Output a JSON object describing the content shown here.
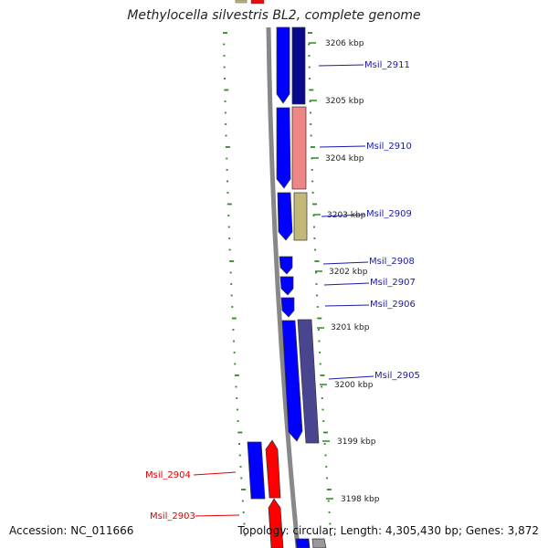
{
  "title": "Methylocella silvestris BL2, complete genome",
  "accession_text": "Accession: NC_011666",
  "summary_text": "Topology: circular; Length: 4,305,430 bp; Genes: 3,872",
  "colors": {
    "backbone": "#888888",
    "tick_green": "#2e8b22",
    "forward_gene": "#0000ff",
    "label_blue": "#1a1aaa",
    "label_red": "#dd0000",
    "navy": "#0a0a8c",
    "salmon": "#ef8686",
    "khaki": "#c2b978",
    "slate": "#4a4590",
    "red": "#ff0000"
  },
  "position_labels": [
    "3206 kbp",
    "3205 kbp",
    "3204 kbp",
    "3203 kbp",
    "3202 kbp",
    "3201 kbp",
    "3200 kbp",
    "3199 kbp",
    "3198 kbp"
  ],
  "gene_labels": [
    {
      "name": "Msil_2911",
      "color": "blue"
    },
    {
      "name": "Msil_2910",
      "color": "blue"
    },
    {
      "name": "Msil_2909",
      "color": "blue"
    },
    {
      "name": "Msil_2908",
      "color": "blue"
    },
    {
      "name": "Msil_2907",
      "color": "blue"
    },
    {
      "name": "Msil_2906",
      "color": "blue"
    },
    {
      "name": "Msil_2905",
      "color": "blue"
    },
    {
      "name": "Msil_2904",
      "color": "red"
    },
    {
      "name": "Msil_2903",
      "color": "red"
    }
  ]
}
